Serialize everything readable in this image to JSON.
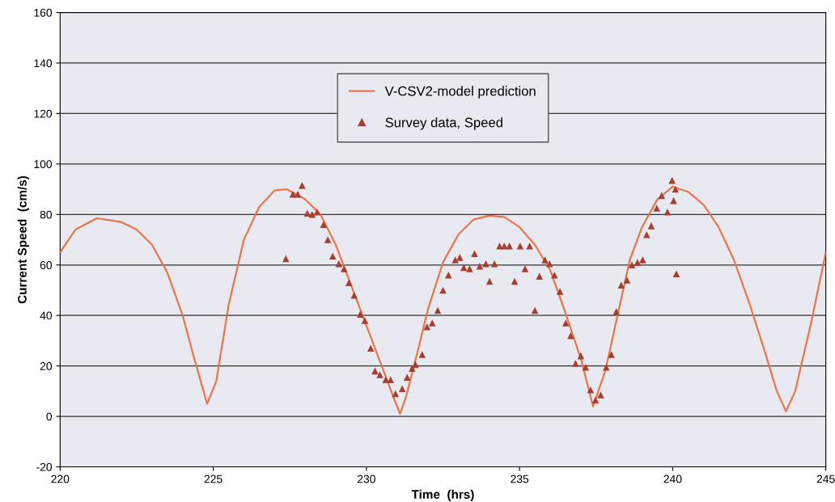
{
  "chart_data": {
    "type": "line",
    "xlabel": "Time  (hrs)",
    "ylabel": "Current Speed  (cm/s)",
    "xlim": [
      220,
      245
    ],
    "xticks": [
      220,
      225,
      230,
      235,
      240,
      245
    ],
    "ylim": [
      -20,
      160
    ],
    "yticks": [
      -20,
      0,
      20,
      40,
      60,
      80,
      100,
      120,
      140,
      160
    ],
    "grid": "y",
    "legend": "top",
    "series": [
      {
        "name": "V-CSV2-model prediction",
        "color": "#e8764c",
        "marker": "none",
        "line_style": "solid",
        "x": [
          220,
          220.5,
          221.2,
          222,
          222.5,
          223,
          223.5,
          224,
          224.4,
          224.8,
          225.1,
          225.5,
          226,
          226.5,
          227,
          227.4,
          228,
          228.5,
          229,
          229.5,
          230,
          230.5,
          230.9,
          231.1,
          231.3,
          231.7,
          232,
          232.5,
          233,
          233.5,
          234,
          234.5,
          235,
          235.5,
          236,
          236.5,
          237,
          237.4,
          237.8,
          238.2,
          238.6,
          239,
          239.5,
          240,
          240.5,
          241,
          241.5,
          242,
          242.5,
          243,
          243.4,
          243.7,
          244,
          244.5,
          245
        ],
        "values": [
          65,
          74,
          78.5,
          77,
          74,
          68,
          57,
          40,
          22,
          5,
          14,
          44,
          70,
          83,
          89.5,
          90,
          86,
          80,
          68,
          52,
          36,
          20,
          7,
          1,
          8,
          27,
          42,
          61,
          72,
          78,
          79.5,
          79,
          75,
          68,
          58,
          41,
          23,
          4,
          18,
          40,
          62,
          75,
          86,
          91,
          89,
          84,
          75,
          62,
          45,
          26,
          10,
          2,
          10,
          36,
          65
        ]
      },
      {
        "name": "Survey data, Speed",
        "type": "scatter",
        "color": "#a83e30",
        "marker": "triangle",
        "x": [
          227.37,
          227.6,
          227.76,
          227.9,
          228.07,
          228.23,
          228.39,
          228.6,
          228.74,
          228.9,
          229.1,
          229.27,
          229.43,
          229.6,
          229.8,
          229.95,
          230.14,
          230.28,
          230.44,
          230.63,
          230.79,
          230.95,
          231.17,
          231.33,
          231.49,
          231.6,
          231.82,
          231.98,
          232.15,
          232.33,
          232.5,
          232.68,
          232.9,
          233.05,
          233.18,
          233.37,
          233.53,
          233.7,
          233.9,
          234.02,
          234.18,
          234.35,
          234.5,
          234.67,
          234.84,
          235.02,
          235.18,
          235.33,
          235.5,
          235.65,
          235.83,
          235.98,
          236.14,
          236.32,
          236.51,
          236.67,
          236.83,
          237.0,
          237.16,
          237.32,
          237.48,
          237.65,
          237.83,
          238.0,
          238.16,
          238.32,
          238.51,
          238.67,
          238.85,
          239.02,
          239.15,
          239.3,
          239.48,
          239.64,
          239.83,
          239.98,
          240.03,
          240.09,
          240.12
        ],
        "values": [
          62.5,
          88,
          88,
          91.5,
          80.5,
          80,
          81,
          76,
          70,
          63.5,
          60.5,
          58.5,
          53,
          48,
          40.5,
          38,
          27,
          18,
          16.5,
          14.5,
          14.5,
          9,
          11,
          15.5,
          19,
          20.5,
          24.5,
          35.5,
          37,
          42,
          50,
          56,
          62,
          63,
          59,
          58.5,
          64.5,
          59.5,
          60.5,
          53.5,
          60.5,
          67.5,
          67.5,
          67.5,
          53.5,
          67.5,
          58.5,
          67.5,
          42,
          55.5,
          62,
          60.5,
          56,
          49.5,
          37,
          32,
          21,
          24,
          19.5,
          10.5,
          6.5,
          8.5,
          19.5,
          24.5,
          41.5,
          52,
          54,
          60,
          61,
          62,
          72,
          75.5,
          82.5,
          87.5,
          81,
          93.5,
          85.5,
          90,
          56.5
        ]
      }
    ]
  }
}
